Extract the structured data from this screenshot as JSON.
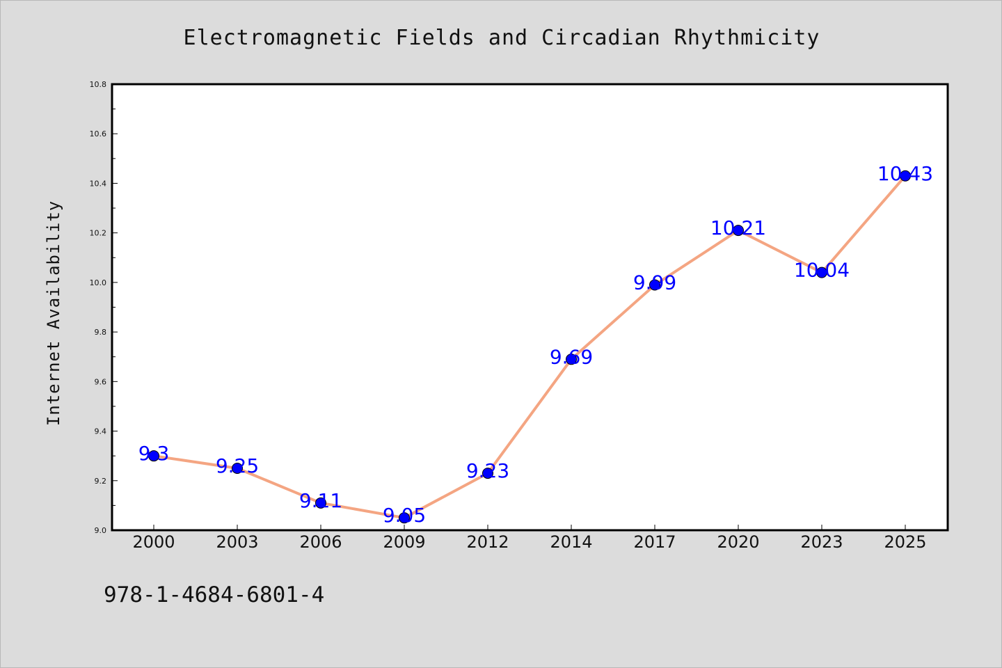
{
  "chart_data": {
    "type": "line",
    "title": "Electromagnetic Fields and Circadian Rhythmicity",
    "xlabel": "",
    "ylabel": "Internet Availability",
    "categories": [
      "2000",
      "2003",
      "2006",
      "2009",
      "2012",
      "2014",
      "2017",
      "2020",
      "2023",
      "2025"
    ],
    "series": [
      {
        "values": [
          9.3,
          9.25,
          9.11,
          9.05,
          9.23,
          9.69,
          9.99,
          10.21,
          10.04,
          10.43
        ],
        "labels": [
          "9.3",
          "9.25",
          "9.11",
          "9.05",
          "9.23",
          "9.69",
          "9.99",
          "10.21",
          "10.04",
          "10.43"
        ],
        "line_color": "#f4a582",
        "marker_color": "#0000ff",
        "label_color": "#0000ff"
      }
    ],
    "ylim": [
      9.0,
      10.8
    ],
    "yticks": [
      "9.0",
      "9.2",
      "9.4",
      "9.6",
      "9.8",
      "10.0",
      "10.2",
      "10.4",
      "10.6",
      "10.8"
    ],
    "grid": false,
    "legend": "none"
  },
  "footer": {
    "isbn": "978-1-4684-6801-4"
  }
}
